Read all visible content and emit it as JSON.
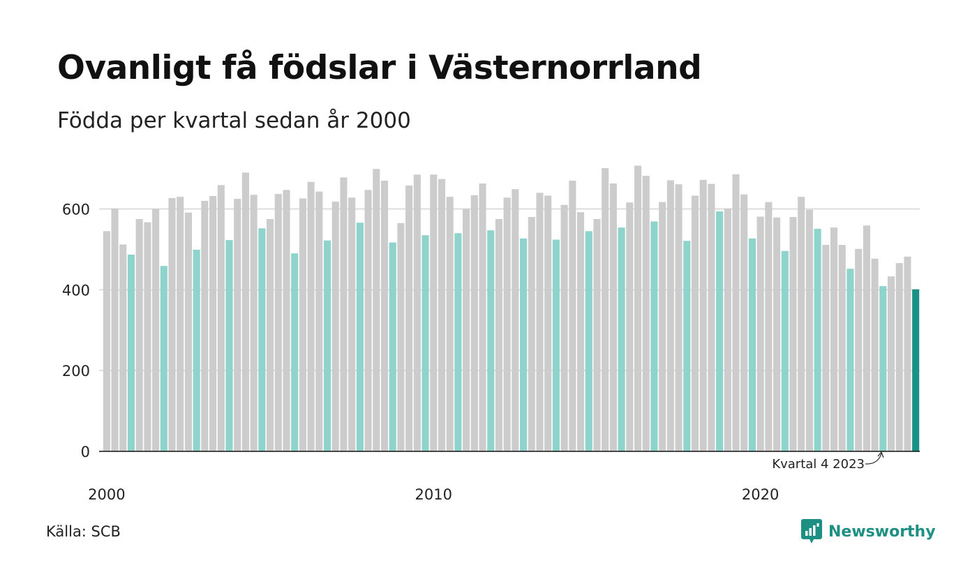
{
  "title": "Ovanligt få födslar i Västernorrland",
  "subtitle": "Födda per kvartal sedan år 2000",
  "source": "Källa: SCB",
  "brand": {
    "name": "Newsworthy",
    "icon": "bar-chart-speech-bubble-icon"
  },
  "chart_data": {
    "type": "bar",
    "ylim": [
      0,
      720
    ],
    "y_ticks": [
      0,
      200,
      400,
      600
    ],
    "x_tick_labels": [
      "2000",
      "2010",
      "2020"
    ],
    "grid": "horizontal",
    "colors": {
      "other_quarters": "#cccccc",
      "fourth_quarter": "#8fd4cc",
      "latest": "#1a9186",
      "axis": "#111111",
      "grid": "#dddddd"
    },
    "annotation": {
      "text": "Kvartal 4 2023",
      "target": "2023 Q4"
    },
    "values": [
      545,
      601,
      512,
      487,
      575,
      567,
      600,
      459,
      627,
      630,
      591,
      499,
      620,
      632,
      659,
      523,
      625,
      690,
      635,
      552,
      575,
      637,
      647,
      490,
      626,
      667,
      643,
      522,
      618,
      678,
      628,
      566,
      647,
      699,
      670,
      517,
      565,
      658,
      685,
      535,
      685,
      674,
      630,
      540,
      600,
      634,
      663,
      547,
      575,
      628,
      649,
      527,
      580,
      640,
      633,
      524,
      610,
      670,
      592,
      545,
      575,
      701,
      663,
      554,
      616,
      707,
      682,
      569,
      617,
      671,
      661,
      521,
      633,
      672,
      662,
      594,
      601,
      686,
      636,
      527,
      581,
      617,
      579,
      496,
      580,
      630,
      598,
      551,
      511,
      554,
      511,
      452,
      501,
      559,
      477,
      409,
      433,
      466,
      482,
      401
    ]
  }
}
